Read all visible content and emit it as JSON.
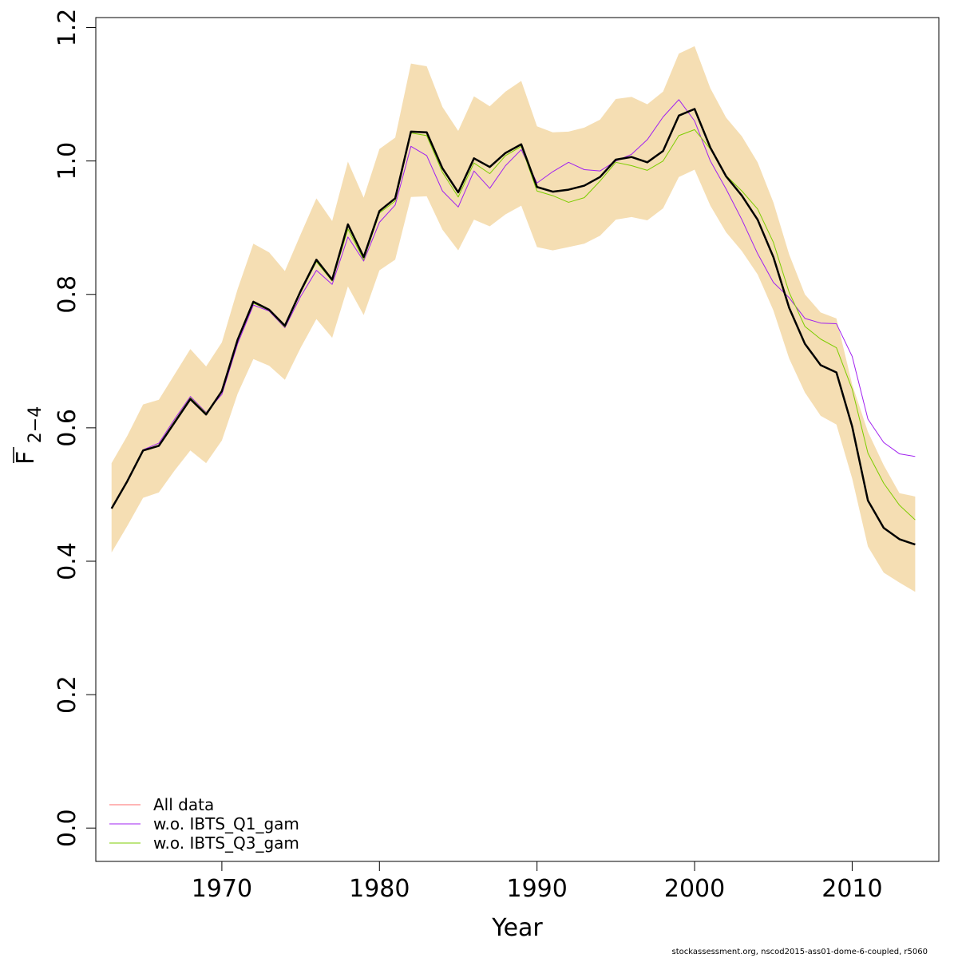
{
  "chart_data": {
    "type": "line",
    "ylabel_main": "F",
    "ylabel_sub": "2−4",
    "xlabel": "Year",
    "xlim": [
      1962.0,
      2015.5
    ],
    "ylim": [
      -0.05,
      1.215
    ],
    "xticks": [
      1970,
      1980,
      1990,
      2000,
      2010
    ],
    "yticks": [
      0.0,
      0.2,
      0.4,
      0.6,
      0.8,
      1.0,
      1.2
    ],
    "ytick_labels": [
      "0.0",
      "0.2",
      "0.4",
      "0.6",
      "0.8",
      "1.0",
      "1.2"
    ],
    "x": [
      1963,
      1964,
      1965,
      1966,
      1967,
      1968,
      1969,
      1970,
      1971,
      1972,
      1973,
      1974,
      1975,
      1976,
      1977,
      1978,
      1979,
      1980,
      1981,
      1982,
      1983,
      1984,
      1985,
      1986,
      1987,
      1988,
      1989,
      1990,
      1991,
      1992,
      1993,
      1994,
      1995,
      1996,
      1997,
      1998,
      1999,
      2000,
      2001,
      2002,
      2003,
      2004,
      2005,
      2006,
      2007,
      2008,
      2009,
      2010,
      2011,
      2012,
      2013,
      2014
    ],
    "band": {
      "color": "#F5DEB3",
      "upper": [
        0.547,
        0.588,
        0.635,
        0.642,
        0.68,
        0.718,
        0.692,
        0.728,
        0.808,
        0.876,
        0.863,
        0.835,
        0.89,
        0.944,
        0.91,
        0.999,
        0.945,
        1.018,
        1.035,
        1.146,
        1.142,
        1.081,
        1.045,
        1.097,
        1.082,
        1.104,
        1.12,
        1.052,
        1.043,
        1.044,
        1.05,
        1.062,
        1.093,
        1.096,
        1.085,
        1.104,
        1.161,
        1.172,
        1.109,
        1.065,
        1.037,
        0.998,
        0.938,
        0.86,
        0.8,
        0.773,
        0.764,
        0.665,
        0.594,
        0.544,
        0.502,
        0.497
      ],
      "lower": [
        0.413,
        0.453,
        0.495,
        0.503,
        0.536,
        0.566,
        0.547,
        0.581,
        0.651,
        0.703,
        0.693,
        0.672,
        0.72,
        0.763,
        0.735,
        0.812,
        0.769,
        0.836,
        0.852,
        0.946,
        0.947,
        0.897,
        0.866,
        0.912,
        0.902,
        0.92,
        0.933,
        0.871,
        0.866,
        0.871,
        0.876,
        0.888,
        0.912,
        0.916,
        0.911,
        0.929,
        0.976,
        0.987,
        0.933,
        0.893,
        0.865,
        0.83,
        0.776,
        0.704,
        0.653,
        0.618,
        0.605,
        0.524,
        0.422,
        0.383,
        0.368,
        0.354
      ]
    },
    "series": [
      {
        "name": "All data",
        "color": "#FF6B6B",
        "width": 1,
        "values": [
          0.479,
          0.52,
          0.566,
          0.573,
          0.608,
          0.643,
          0.62,
          0.655,
          0.732,
          0.789,
          0.777,
          0.753,
          0.805,
          0.852,
          0.822,
          0.905,
          0.856,
          0.925,
          0.944,
          1.044,
          1.043,
          0.989,
          0.953,
          1.004,
          0.991,
          1.012,
          1.025,
          0.961,
          0.954,
          0.957,
          0.963,
          0.976,
          1.002,
          1.006,
          0.998,
          1.015,
          1.068,
          1.078,
          1.02,
          0.977,
          0.948,
          0.912,
          0.856,
          0.78,
          0.726,
          0.694,
          0.683,
          0.602,
          0.491,
          0.45,
          0.433,
          0.425
        ]
      },
      {
        "name": "w.o. IBTS_Q1_gam",
        "color": "#A020F0",
        "width": 1,
        "values": [
          0.48,
          0.52,
          0.567,
          0.577,
          0.613,
          0.647,
          0.623,
          0.65,
          0.726,
          0.784,
          0.775,
          0.75,
          0.797,
          0.836,
          0.815,
          0.886,
          0.85,
          0.908,
          0.934,
          1.022,
          1.008,
          0.955,
          0.931,
          0.985,
          0.959,
          0.993,
          1.017,
          0.967,
          0.984,
          0.998,
          0.987,
          0.985,
          1.0,
          1.01,
          1.032,
          1.066,
          1.092,
          1.06,
          1.0,
          0.958,
          0.912,
          0.861,
          0.818,
          0.795,
          0.764,
          0.757,
          0.756,
          0.707,
          0.613,
          0.578,
          0.561,
          0.557
        ]
      },
      {
        "name": "w.o. IBTS_Q3_gam",
        "color": "#7CCD00",
        "width": 1,
        "values": [
          0.48,
          0.52,
          0.566,
          0.574,
          0.61,
          0.645,
          0.622,
          0.655,
          0.731,
          0.787,
          0.776,
          0.751,
          0.803,
          0.849,
          0.82,
          0.898,
          0.852,
          0.922,
          0.94,
          1.042,
          1.038,
          0.983,
          0.946,
          0.997,
          0.981,
          1.008,
          1.022,
          0.955,
          0.948,
          0.938,
          0.945,
          0.97,
          0.998,
          0.993,
          0.986,
          1.0,
          1.038,
          1.047,
          1.018,
          0.978,
          0.955,
          0.928,
          0.878,
          0.803,
          0.752,
          0.733,
          0.72,
          0.658,
          0.562,
          0.517,
          0.484,
          0.462
        ]
      },
      {
        "name": "",
        "color": "#000000",
        "width": 2.5,
        "values": [
          0.479,
          0.52,
          0.566,
          0.573,
          0.608,
          0.643,
          0.62,
          0.655,
          0.732,
          0.789,
          0.777,
          0.753,
          0.805,
          0.852,
          0.822,
          0.905,
          0.856,
          0.925,
          0.944,
          1.044,
          1.043,
          0.989,
          0.953,
          1.004,
          0.991,
          1.012,
          1.025,
          0.961,
          0.954,
          0.957,
          0.963,
          0.976,
          1.002,
          1.006,
          0.998,
          1.015,
          1.068,
          1.078,
          1.02,
          0.977,
          0.948,
          0.912,
          0.856,
          0.78,
          0.726,
          0.694,
          0.683,
          0.602,
          0.491,
          0.45,
          0.433,
          0.425
        ]
      }
    ],
    "legend": {
      "position": "bottom-left",
      "entries": [
        {
          "label": "All data",
          "color": "#FF6B6B"
        },
        {
          "label": "w.o. IBTS_Q1_gam",
          "color": "#A020F0"
        },
        {
          "label": "w.o. IBTS_Q3_gam",
          "color": "#7CCD00"
        }
      ]
    },
    "grid": false
  },
  "footer": "stockassessment.org, nscod2015-ass01-dome-6-coupled, r5060"
}
